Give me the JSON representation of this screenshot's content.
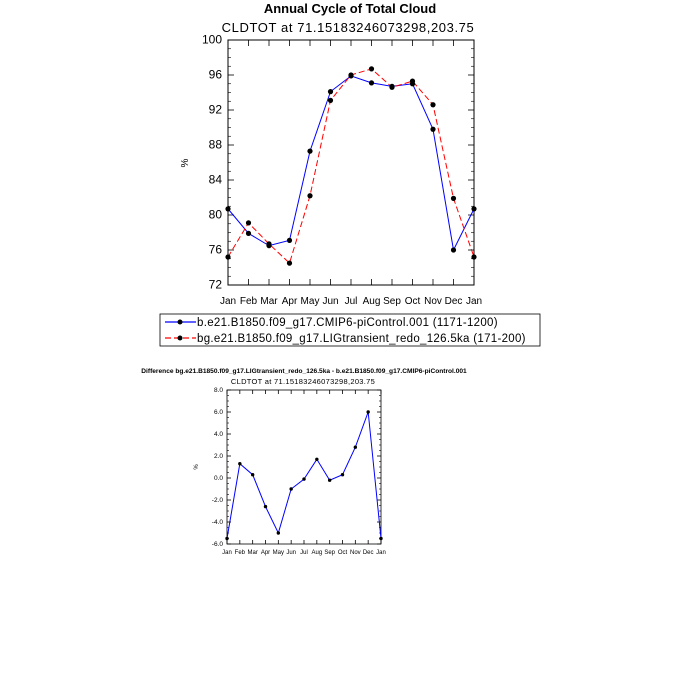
{
  "chart_data": [
    {
      "type": "line",
      "title": "Annual Cycle of Total Cloud",
      "subtitle": "CLDTOT at 71.15183246073298,203.75",
      "xlabel": "",
      "ylabel": "%",
      "categories": [
        "Jan",
        "Feb",
        "Mar",
        "Apr",
        "May",
        "Jun",
        "Jul",
        "Aug",
        "Sep",
        "Oct",
        "Nov",
        "Dec",
        "Jan"
      ],
      "ylim": [
        72,
        100
      ],
      "yticks": [
        72,
        76,
        80,
        84,
        88,
        92,
        96,
        100
      ],
      "yticklabels": [
        "72",
        "76",
        "80",
        "84",
        "88",
        "92",
        "96",
        "100"
      ],
      "series": [
        {
          "name": "b.e21.B1850.f09_g17.CMIP6-piControl.001 (1171-1200)",
          "color": "#0000ff",
          "dash": "solid",
          "values": [
            80.7,
            77.9,
            76.5,
            77.1,
            87.3,
            94.1,
            95.9,
            95.1,
            94.7,
            95.0,
            89.8,
            76.0,
            80.7
          ]
        },
        {
          "name": "bg.e21.B1850.f09_g17.LIGtransient_redo_126.5ka (171-200)",
          "color": "#ff0000",
          "dash": "dashed",
          "values": [
            75.2,
            79.1,
            76.7,
            74.5,
            82.2,
            93.1,
            96.0,
            96.7,
            94.6,
            95.3,
            92.6,
            81.9,
            75.2
          ]
        }
      ],
      "legend_position": "bottom"
    },
    {
      "type": "line",
      "title": "Difference bg.e21.B1850.f09_g17.LIGtransient_redo_126.5ka - b.e21.B1850.f09_g17.CMIP6-piControl.001",
      "subtitle": "CLDTOT at 71.15183246073298,203.75",
      "xlabel": "",
      "ylabel": "%",
      "categories": [
        "Jan",
        "Feb",
        "Mar",
        "Apr",
        "May",
        "Jun",
        "Jul",
        "Aug",
        "Sep",
        "Oct",
        "Nov",
        "Dec",
        "Jan"
      ],
      "ylim": [
        -6.0,
        8.0
      ],
      "yticks": [
        -6,
        -4,
        -2,
        0,
        2,
        4,
        6,
        8
      ],
      "yticklabels": [
        "-6.0",
        "-4.0",
        "-2.0",
        "0.0",
        "2.0",
        "4.0",
        "6.0",
        "8.0"
      ],
      "series": [
        {
          "color": "#0000ff",
          "values": [
            -5.5,
            1.3,
            0.3,
            -2.6,
            -5.0,
            -1.0,
            -0.1,
            1.7,
            -0.2,
            0.3,
            2.8,
            6.0,
            -5.5
          ]
        }
      ]
    }
  ]
}
